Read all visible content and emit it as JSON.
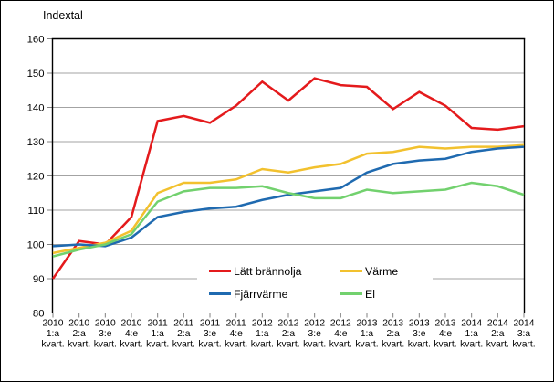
{
  "chart_data": {
    "type": "line",
    "title": "Indextal",
    "xlabel": "",
    "ylabel": "",
    "ylim": [
      80,
      160
    ],
    "yticks": [
      80,
      90,
      100,
      110,
      120,
      130,
      140,
      150,
      160
    ],
    "grid": true,
    "legend_position": "inside-bottom-center",
    "categories": [
      [
        "2010",
        "1:a",
        "kvart."
      ],
      [
        "2010",
        "2:a",
        "kvart."
      ],
      [
        "2010",
        "3:e",
        "kvart."
      ],
      [
        "2010",
        "4:e",
        "kvart."
      ],
      [
        "2011",
        "1:a",
        "kvart."
      ],
      [
        "2011",
        "2:a",
        "kvart."
      ],
      [
        "2011",
        "3:e",
        "kvart."
      ],
      [
        "2011",
        "4:e",
        "kvart."
      ],
      [
        "2012",
        "1:a",
        "kvart."
      ],
      [
        "2012",
        "2:a",
        "kvart."
      ],
      [
        "2012",
        "3:e",
        "kvart."
      ],
      [
        "2012",
        "4:e",
        "kvart."
      ],
      [
        "2013",
        "1:a",
        "kvart."
      ],
      [
        "2013",
        "2:a",
        "kvart."
      ],
      [
        "2013",
        "3:e",
        "kvart."
      ],
      [
        "2013",
        "4:e",
        "kvart."
      ],
      [
        "2014",
        "1:a",
        "kvart."
      ],
      [
        "2014",
        "2:a",
        "kvart."
      ],
      [
        "2014",
        "3:a",
        "kvart."
      ]
    ],
    "series": [
      {
        "name": "Lätt brännolja",
        "color": "#e41a1c",
        "values": [
          90,
          101,
          100,
          108,
          136,
          137.5,
          135.5,
          140.5,
          147.5,
          142,
          148.5,
          146.5,
          146,
          139.5,
          144.5,
          140.5,
          134,
          133.5,
          134.5
        ]
      },
      {
        "name": "Värme",
        "color": "#f2c12e",
        "values": [
          97.5,
          99,
          100.5,
          104,
          115,
          118,
          118,
          119,
          122,
          121,
          122.5,
          123.5,
          126.5,
          127,
          128.5,
          128,
          128.5,
          128.5,
          129
        ]
      },
      {
        "name": "Fjärrvärme",
        "color": "#1f6ab0",
        "values": [
          99.5,
          100,
          99.5,
          102,
          108,
          109.5,
          110.5,
          111,
          113,
          114.5,
          115.5,
          116.5,
          121,
          123.5,
          124.5,
          125,
          127,
          128,
          128.5
        ]
      },
      {
        "name": "El",
        "color": "#72d16e",
        "values": [
          96.5,
          98.5,
          100,
          103,
          112.5,
          115.5,
          116.5,
          116.5,
          117,
          115,
          113.5,
          113.5,
          116,
          115,
          115.5,
          116,
          118,
          117,
          114.5
        ]
      }
    ],
    "colors": {
      "gridline": "#a3a3a3",
      "axis": "#808080",
      "plot_border": "#000000"
    }
  }
}
